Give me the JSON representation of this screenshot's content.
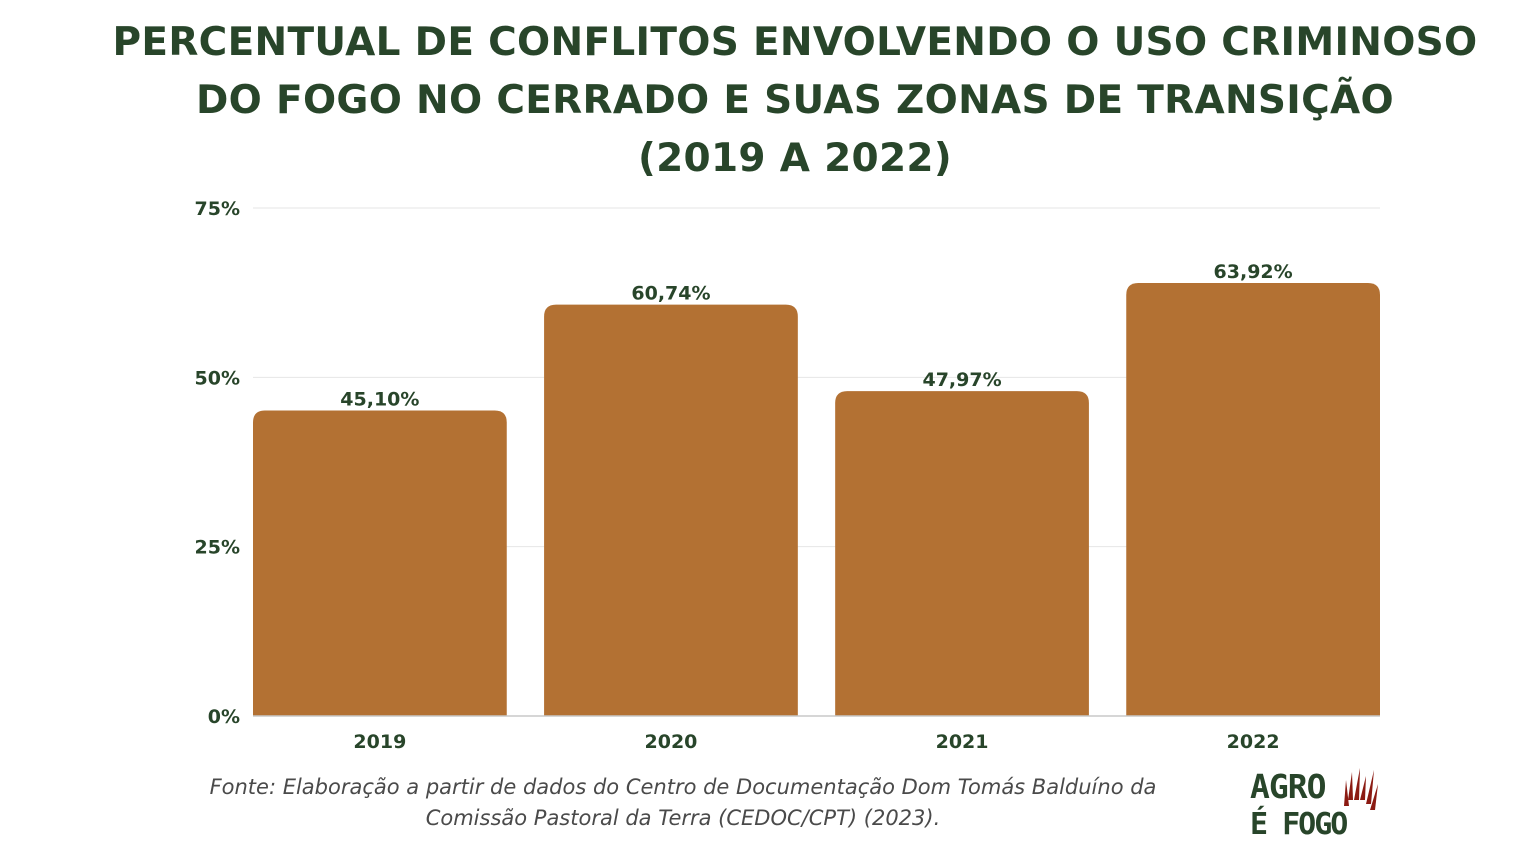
{
  "title": {
    "line1": "PERCENTUAL DE CONFLITOS ENVOLVENDO O USO CRIMINOSO",
    "line2": "DO FOGO NO CERRADO E SUAS ZONAS DE TRANSIÇÃO",
    "line3": "(2019 A 2022)"
  },
  "source": {
    "line1": "Fonte: Elaboração a partir de dados do Centro de Documentação Dom Tomás Balduíno da",
    "line2": "Comissão Pastoral da Terra (CEDOC/CPT) (2023)."
  },
  "logo": {
    "line1": "AGRO",
    "line2": "É FOGO",
    "text_color": "#28452a",
    "accent_color": "#8b1a12"
  },
  "colors": {
    "bar": "#b37133",
    "text": "#28452a",
    "grid": "#e6e6e6",
    "axis": "#c8c8c8"
  },
  "chart_data": {
    "type": "bar",
    "title": "PERCENTUAL DE CONFLITOS ENVOLVENDO O USO CRIMINOSO DO FOGO NO CERRADO E SUAS ZONAS DE TRANSIÇÃO (2019 A 2022)",
    "categories": [
      "2019",
      "2020",
      "2021",
      "2022"
    ],
    "values": [
      45.1,
      60.74,
      47.97,
      63.92
    ],
    "data_labels": [
      "45,10%",
      "60,74%",
      "47,97%",
      "63,92%"
    ],
    "ylim": [
      0,
      75
    ],
    "yticks": [
      0,
      25,
      50,
      75
    ],
    "ytick_labels": [
      "0%",
      "25%",
      "50%",
      "75%"
    ],
    "grid": true,
    "legend": false,
    "xlabel": "",
    "ylabel": ""
  }
}
